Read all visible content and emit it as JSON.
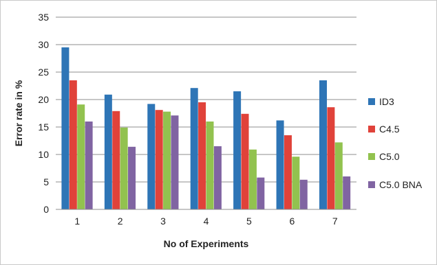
{
  "chart_data": {
    "type": "bar",
    "title": "",
    "xlabel": "No of Experiments",
    "ylabel": "Error rate in %",
    "categories": [
      "1",
      "2",
      "3",
      "4",
      "5",
      "6",
      "7"
    ],
    "series": [
      {
        "name": "ID3",
        "color": "#2e75b6",
        "values": [
          29.5,
          20.9,
          19.2,
          22.1,
          21.5,
          16.2,
          23.5
        ]
      },
      {
        "name": "C4.5",
        "color": "#e0423a",
        "values": [
          23.5,
          17.9,
          18.1,
          19.5,
          17.4,
          13.5,
          18.6
        ]
      },
      {
        "name": "C5.0",
        "color": "#92c24f",
        "values": [
          19.1,
          14.9,
          17.8,
          16.0,
          10.9,
          9.6,
          12.2
        ]
      },
      {
        "name": "C5.0 BNA",
        "color": "#8064a2",
        "values": [
          16.0,
          11.4,
          17.1,
          11.5,
          5.8,
          5.4,
          6.0
        ]
      }
    ],
    "ylim": [
      0,
      35
    ],
    "yticks": [
      0,
      5,
      10,
      15,
      20,
      25,
      30,
      35
    ],
    "grid": true,
    "legend": "right"
  }
}
